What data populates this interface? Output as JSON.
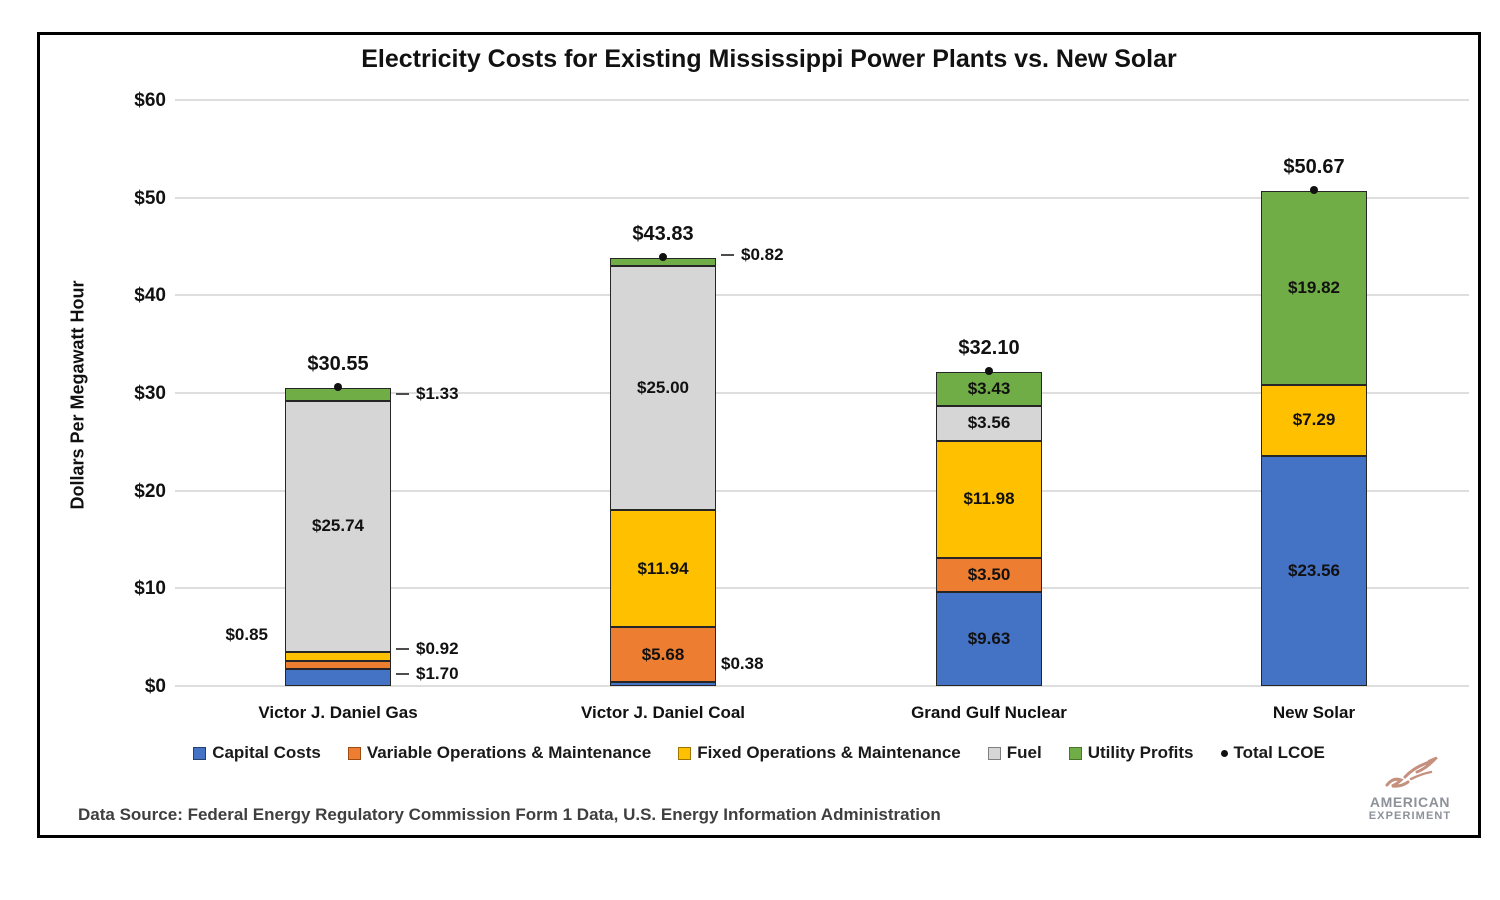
{
  "title": "Electricity Costs for Existing Mississippi Power Plants vs. New Solar",
  "y_axis": {
    "label": "Dollars Per Megawatt Hour",
    "ticks": [
      "$0",
      "$10",
      "$20",
      "$30",
      "$40",
      "$50",
      "$60"
    ]
  },
  "source": "Data Source: Federal Energy Regulatory Commission Form 1 Data, U.S. Energy Information Administration",
  "logo": {
    "line1": "AMERICAN",
    "line2": "EXPERIMENT",
    "bird_color": "#c5907e",
    "text_color": "#8d9199"
  },
  "legend": {
    "items": [
      {
        "label": "Capital Costs",
        "marker": "square",
        "fill": "#4472c4",
        "border": "#24406f"
      },
      {
        "label": "Variable Operations & Maintenance",
        "marker": "square",
        "fill": "#ed7d31",
        "border": "#9c4b12"
      },
      {
        "label": "Fixed Operations & Maintenance",
        "marker": "square",
        "fill": "#ffc000",
        "border": "#9c7400"
      },
      {
        "label": "Fuel",
        "marker": "square",
        "fill": "#d6d6d6",
        "border": "#7f7f7f"
      },
      {
        "label": "Utility Profits",
        "marker": "square",
        "fill": "#70ad47",
        "border": "#48742c"
      },
      {
        "label": "Total LCOE",
        "marker": "dot",
        "fill": "#111111",
        "border": "#111111"
      }
    ]
  },
  "chart_data": {
    "type": "bar",
    "stacked": true,
    "title": "Electricity Costs for Existing Mississippi Power Plants vs. New Solar",
    "ylabel": "Dollars Per Megawatt Hour",
    "ylim": [
      0,
      60
    ],
    "grid": true,
    "legend_position": "bottom",
    "categories": [
      "Victor J. Daniel Gas",
      "Victor J. Daniel Coal",
      "Grand Gulf Nuclear",
      "New Solar"
    ],
    "series": [
      {
        "name": "Capital Costs",
        "color": "#4472c4",
        "values": [
          1.7,
          0.38,
          9.63,
          23.56
        ]
      },
      {
        "name": "Variable Operations & Maintenance",
        "color": "#ed7d31",
        "values": [
          0.85,
          5.68,
          3.5,
          0
        ]
      },
      {
        "name": "Fixed Operations & Maintenance",
        "color": "#ffc000",
        "values": [
          0.92,
          11.94,
          11.98,
          7.29
        ]
      },
      {
        "name": "Fuel",
        "color": "#d6d6d6",
        "values": [
          25.74,
          25.0,
          3.56,
          0
        ]
      },
      {
        "name": "Utility Profits",
        "color": "#70ad47",
        "values": [
          1.33,
          0.82,
          3.43,
          19.82
        ]
      }
    ],
    "totals": [
      30.55,
      43.83,
      32.1,
      50.67
    ],
    "total_labels": [
      "$30.55",
      "$43.83",
      "$32.10",
      "$50.67"
    ],
    "value_labels": [
      [
        {
          "series": 0,
          "text": "$1.70",
          "placement": "right",
          "dash": true,
          "dy": -4
        },
        {
          "series": 1,
          "text": "$0.85",
          "placement": "left",
          "dash": false,
          "dy": -30
        },
        {
          "series": 2,
          "text": "$0.92",
          "placement": "right",
          "dash": true,
          "dy": -8
        },
        {
          "series": 3,
          "text": "$25.74",
          "placement": "inside",
          "dash": false,
          "dy": 0
        },
        {
          "series": 4,
          "text": "$1.33",
          "placement": "right",
          "dash": true,
          "dy": 0
        }
      ],
      [
        {
          "series": 0,
          "text": "$0.38",
          "placement": "right",
          "dash": false,
          "dy": -20
        },
        {
          "series": 1,
          "text": "$5.68",
          "placement": "inside",
          "dash": false,
          "dy": 0
        },
        {
          "series": 2,
          "text": "$11.94",
          "placement": "inside",
          "dash": false,
          "dy": 0
        },
        {
          "series": 3,
          "text": "$25.00",
          "placement": "inside",
          "dash": false,
          "dy": 0
        },
        {
          "series": 4,
          "text": "$0.82",
          "placement": "right",
          "dash": true,
          "dy": -7
        }
      ],
      [
        {
          "series": 0,
          "text": "$9.63",
          "placement": "inside",
          "dash": false,
          "dy": 0
        },
        {
          "series": 1,
          "text": "$3.50",
          "placement": "inside",
          "dash": false,
          "dy": 0
        },
        {
          "series": 2,
          "text": "$11.98",
          "placement": "inside",
          "dash": false,
          "dy": 0
        },
        {
          "series": 3,
          "text": "$3.56",
          "placement": "inside",
          "dash": false,
          "dy": 0
        },
        {
          "series": 4,
          "text": "$3.43",
          "placement": "inside",
          "dash": false,
          "dy": 0
        }
      ],
      [
        {
          "series": 0,
          "text": "$23.56",
          "placement": "inside",
          "dash": false,
          "dy": 0
        },
        {
          "series": 2,
          "text": "$7.29",
          "placement": "inside",
          "dash": false,
          "dy": 0
        },
        {
          "series": 4,
          "text": "$19.82",
          "placement": "inside",
          "dash": false,
          "dy": 0
        }
      ]
    ]
  }
}
